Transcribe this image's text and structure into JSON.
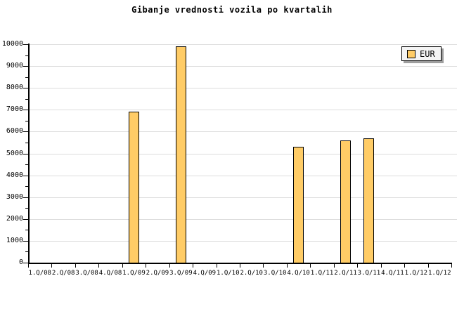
{
  "title": "Gibanje vrednosti vozila po kvartalih",
  "legend": {
    "label": "EUR",
    "position": "top-right"
  },
  "colors": {
    "bar_fill": "#FFCC66",
    "bar_border": "#000000",
    "grid": "#DCDCDC",
    "axis": "#000000",
    "legend_bg": "#F4F4F4",
    "legend_shadow": "#9E9E9E",
    "background": "#FFFFFF"
  },
  "chart_data": {
    "type": "bar",
    "title": "Gibanje vrednosti vozila po kvartalih",
    "xlabel": "",
    "ylabel": "",
    "categories": [
      "1.Q/08",
      "2.Q/08",
      "3.Q/08",
      "4.Q/08",
      "1.Q/09",
      "2.Q/09",
      "3.Q/09",
      "4.Q/09",
      "1.Q/10",
      "2.Q/10",
      "3.Q/10",
      "4.Q/10",
      "1.Q/11",
      "2.Q/11",
      "3.Q/11",
      "4.Q/11",
      "1.Q/12",
      "1.Q/12"
    ],
    "series": [
      {
        "name": "EUR",
        "values": [
          null,
          null,
          null,
          null,
          6900,
          null,
          9900,
          null,
          null,
          null,
          null,
          5300,
          null,
          5600,
          5700,
          null,
          null,
          null
        ]
      }
    ],
    "ylim": [
      0,
      10000
    ],
    "ytick_step": 1000,
    "ytick_minor_step": 500,
    "grid": "horizontal-major",
    "legend_position": "top-right"
  }
}
